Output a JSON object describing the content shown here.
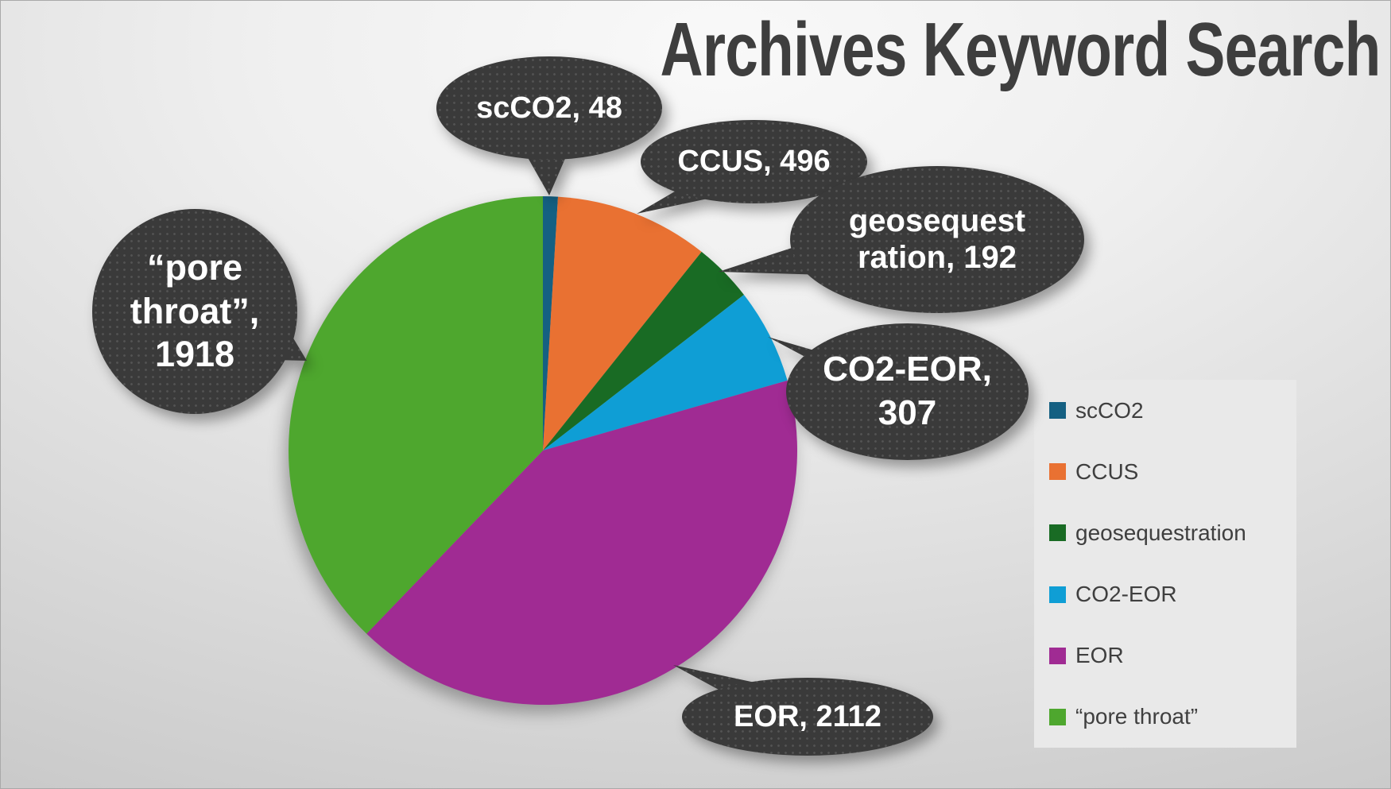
{
  "title": "Archives Keyword Search",
  "chart_data": {
    "type": "pie",
    "title": "Archives Keyword Search",
    "categories": [
      "scCO2",
      "CCUS",
      "geosequestration",
      "CO2-EOR",
      "EOR",
      "“pore throat”"
    ],
    "values": [
      48,
      496,
      192,
      307,
      2112,
      1918
    ],
    "colors": [
      "#156082",
      "#E97132",
      "#196B24",
      "#0F9ED5",
      "#A02B93",
      "#4EA72E"
    ],
    "start_angle_deg": 0,
    "direction": "clockwise",
    "legend_position": "right",
    "data_labels": [
      "scCO2, 48",
      "CCUS, 496",
      "geosequestration, 192",
      "CO2-EOR, 307",
      "EOR, 2112",
      "“pore throat”, 1918"
    ]
  },
  "legend": {
    "items": [
      {
        "label": "scCO2"
      },
      {
        "label": "CCUS"
      },
      {
        "label": "geosequestration"
      },
      {
        "label": "CO2-EOR"
      },
      {
        "label": "EOR"
      },
      {
        "label": "“pore throat”"
      }
    ]
  },
  "callouts": [
    {
      "name": "scCO2",
      "lines": [
        "scCO2, 48"
      ]
    },
    {
      "name": "CCUS",
      "lines": [
        "CCUS, 496"
      ]
    },
    {
      "name": "geosequestration",
      "lines": [
        "geosequest",
        "ration, 192"
      ]
    },
    {
      "name": "CO2-EOR",
      "lines": [
        "CO2-EOR,",
        "307"
      ]
    },
    {
      "name": "EOR",
      "lines": [
        "EOR, 2112"
      ]
    },
    {
      "name": "pore-throat",
      "lines": [
        "“pore",
        "throat”,",
        "1918"
      ]
    }
  ]
}
